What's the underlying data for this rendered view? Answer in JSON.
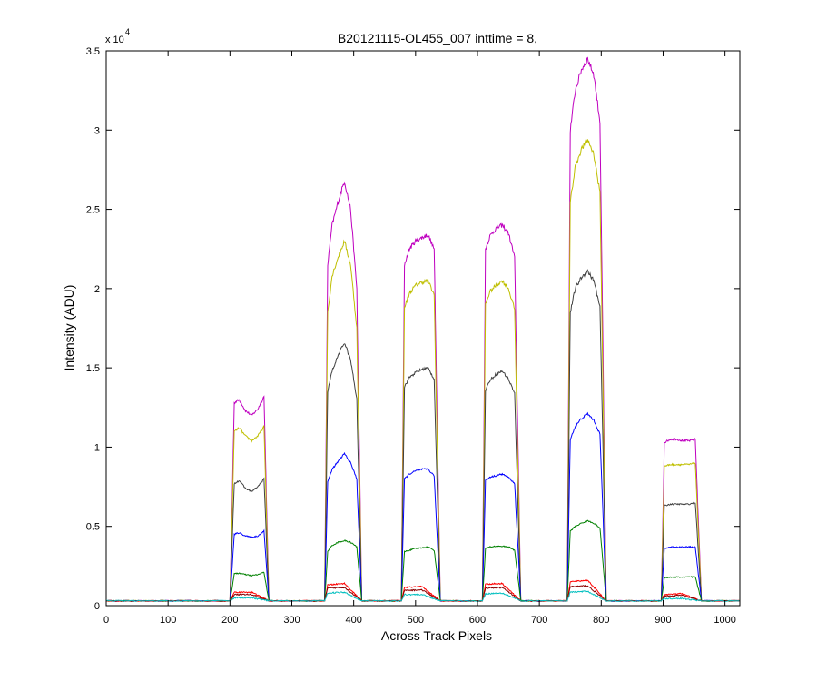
{
  "chart_data": {
    "type": "line",
    "title": "B20121115-OL455_007 inttime = 8,",
    "xlabel": "Across Track Pixels",
    "ylabel": "Intensity (ADU)",
    "y_exponent_base": "x 10",
    "y_exponent_power": "4",
    "xlim": [
      0,
      1024
    ],
    "ylim": [
      0,
      35000
    ],
    "x_ticks": [
      0,
      100,
      200,
      300,
      400,
      500,
      600,
      700,
      800,
      900,
      1000
    ],
    "x_tick_labels": [
      "0",
      "100",
      "200",
      "300",
      "400",
      "500",
      "600",
      "700",
      "800",
      "900",
      "1000"
    ],
    "y_ticks": [
      0,
      5000,
      10000,
      15000,
      20000,
      25000,
      30000,
      35000
    ],
    "y_tick_labels": [
      "0",
      "0.5",
      "1",
      "1.5",
      "2",
      "2.5",
      "3",
      "3.5"
    ],
    "grid": false,
    "baseline": 300,
    "series_colors": [
      "#bf00bf",
      "#bfbf00",
      "#404040",
      "#0000ff",
      "#008000",
      "#ff0000",
      "#8b0000",
      "#00bfbf"
    ],
    "plateaus": [
      {
        "x_start": 200,
        "x_end": 263,
        "levels": [
          {
            "x": [
              200,
              207,
              215,
              225,
              235,
              245,
              255,
              263
            ],
            "y": [
              300,
              12800,
              13000,
              12300,
              12000,
              12400,
              13200,
              300
            ]
          },
          {
            "x": [
              200,
              207,
              215,
              225,
              235,
              245,
              255,
              263
            ],
            "y": [
              300,
              11000,
              11200,
              10700,
              10400,
              10700,
              11300,
              300
            ]
          },
          {
            "x": [
              200,
              207,
              215,
              225,
              235,
              245,
              255,
              263
            ],
            "y": [
              300,
              7700,
              7900,
              7400,
              7200,
              7500,
              8000,
              300
            ]
          },
          {
            "x": [
              200,
              207,
              215,
              225,
              235,
              245,
              255,
              263
            ],
            "y": [
              300,
              4500,
              4600,
              4400,
              4300,
              4400,
              4700,
              300
            ]
          },
          {
            "x": [
              200,
              207,
              215,
              225,
              235,
              245,
              255,
              263
            ],
            "y": [
              300,
              2000,
              2050,
              1950,
              1900,
              1950,
              2100,
              300
            ]
          },
          {
            "x": [
              200,
              207,
              235,
              263
            ],
            "y": [
              300,
              850,
              850,
              300
            ]
          },
          {
            "x": [
              200,
              207,
              235,
              263
            ],
            "y": [
              300,
              700,
              700,
              300
            ]
          },
          {
            "x": [
              200,
              207,
              235,
              263
            ],
            "y": [
              300,
              500,
              500,
              300
            ]
          }
        ]
      },
      {
        "x_start": 353,
        "x_end": 413,
        "levels": [
          {
            "x": [
              353,
              358,
              365,
              375,
              385,
              395,
              405,
              413
            ],
            "y": [
              300,
              21500,
              24000,
              25500,
              26800,
              25000,
              20000,
              300
            ]
          },
          {
            "x": [
              353,
              358,
              365,
              375,
              385,
              395,
              405,
              413
            ],
            "y": [
              300,
              18500,
              20800,
              22000,
              23000,
              21500,
              17500,
              300
            ]
          },
          {
            "x": [
              353,
              358,
              365,
              375,
              385,
              395,
              405,
              413
            ],
            "y": [
              300,
              13500,
              14800,
              15800,
              16600,
              15500,
              13000,
              300
            ]
          },
          {
            "x": [
              353,
              358,
              365,
              375,
              385,
              395,
              405,
              413
            ],
            "y": [
              300,
              7800,
              8600,
              9100,
              9600,
              9000,
              8000,
              300
            ]
          },
          {
            "x": [
              353,
              358,
              365,
              375,
              385,
              395,
              405,
              413
            ],
            "y": [
              300,
              3400,
              3800,
              4000,
              4100,
              4000,
              3700,
              300
            ]
          },
          {
            "x": [
              353,
              358,
              385,
              413
            ],
            "y": [
              300,
              1300,
              1400,
              300
            ]
          },
          {
            "x": [
              353,
              358,
              385,
              413
            ],
            "y": [
              300,
              1100,
              1150,
              300
            ]
          },
          {
            "x": [
              353,
              358,
              385,
              413
            ],
            "y": [
              300,
              800,
              850,
              300
            ]
          }
        ]
      },
      {
        "x_start": 477,
        "x_end": 540,
        "levels": [
          {
            "x": [
              477,
              482,
              490,
              500,
              510,
              520,
              530,
              540
            ],
            "y": [
              300,
              21500,
              22500,
              23000,
              23200,
              23400,
              22500,
              300
            ]
          },
          {
            "x": [
              477,
              482,
              490,
              500,
              510,
              520,
              530,
              540
            ],
            "y": [
              300,
              18800,
              19700,
              20200,
              20400,
              20500,
              19600,
              300
            ]
          },
          {
            "x": [
              477,
              482,
              490,
              500,
              510,
              520,
              530,
              540
            ],
            "y": [
              300,
              13800,
              14400,
              14700,
              14900,
              15000,
              14300,
              300
            ]
          },
          {
            "x": [
              477,
              482,
              490,
              500,
              510,
              520,
              530,
              540
            ],
            "y": [
              300,
              8000,
              8300,
              8500,
              8600,
              8600,
              8200,
              300
            ]
          },
          {
            "x": [
              477,
              482,
              490,
              500,
              510,
              520,
              530,
              540
            ],
            "y": [
              300,
              3400,
              3500,
              3600,
              3650,
              3700,
              3500,
              300
            ]
          },
          {
            "x": [
              477,
              482,
              510,
              540
            ],
            "y": [
              300,
              1150,
              1200,
              300
            ]
          },
          {
            "x": [
              477,
              482,
              510,
              540
            ],
            "y": [
              300,
              950,
              1000,
              300
            ]
          },
          {
            "x": [
              477,
              482,
              510,
              540
            ],
            "y": [
              300,
              700,
              700,
              300
            ]
          }
        ]
      },
      {
        "x_start": 608,
        "x_end": 670,
        "levels": [
          {
            "x": [
              608,
              613,
              620,
              630,
              640,
              650,
              660,
              670
            ],
            "y": [
              300,
              22500,
              23300,
              23800,
              24000,
              23500,
              22000,
              300
            ]
          },
          {
            "x": [
              608,
              613,
              620,
              630,
              640,
              650,
              660,
              670
            ],
            "y": [
              300,
              19000,
              19800,
              20200,
              20500,
              20000,
              18700,
              300
            ]
          },
          {
            "x": [
              608,
              613,
              620,
              630,
              640,
              650,
              660,
              670
            ],
            "y": [
              300,
              13600,
              14200,
              14600,
              14800,
              14300,
              13400,
              300
            ]
          },
          {
            "x": [
              608,
              613,
              620,
              630,
              640,
              650,
              660,
              670
            ],
            "y": [
              300,
              7900,
              8100,
              8200,
              8300,
              8100,
              7700,
              300
            ]
          },
          {
            "x": [
              608,
              613,
              620,
              630,
              640,
              650,
              660,
              670
            ],
            "y": [
              300,
              3600,
              3700,
              3750,
              3750,
              3700,
              3500,
              300
            ]
          },
          {
            "x": [
              608,
              613,
              640,
              670
            ],
            "y": [
              300,
              1350,
              1400,
              300
            ]
          },
          {
            "x": [
              608,
              613,
              640,
              670
            ],
            "y": [
              300,
              1100,
              1150,
              300
            ]
          },
          {
            "x": [
              608,
              613,
              640,
              670
            ],
            "y": [
              300,
              750,
              800,
              300
            ]
          }
        ]
      },
      {
        "x_start": 745,
        "x_end": 808,
        "levels": [
          {
            "x": [
              745,
              750,
              758,
              768,
              778,
              788,
              798,
              808
            ],
            "y": [
              300,
              30000,
              32500,
              33800,
              34500,
              33500,
              30500,
              300
            ]
          },
          {
            "x": [
              745,
              750,
              758,
              768,
              778,
              788,
              798,
              808
            ],
            "y": [
              300,
              25500,
              27700,
              28800,
              29400,
              28500,
              26000,
              300
            ]
          },
          {
            "x": [
              745,
              750,
              758,
              768,
              778,
              788,
              798,
              808
            ],
            "y": [
              300,
              18500,
              20000,
              20700,
              21100,
              20500,
              18800,
              300
            ]
          },
          {
            "x": [
              745,
              750,
              758,
              768,
              778,
              788,
              798,
              808
            ],
            "y": [
              300,
              10500,
              11300,
              11800,
              12100,
              11700,
              10800,
              300
            ]
          },
          {
            "x": [
              745,
              750,
              758,
              768,
              778,
              788,
              798,
              808
            ],
            "y": [
              300,
              4700,
              5000,
              5200,
              5350,
              5200,
              4900,
              300
            ]
          },
          {
            "x": [
              745,
              750,
              778,
              808
            ],
            "y": [
              300,
              1500,
              1600,
              300
            ]
          },
          {
            "x": [
              745,
              750,
              778,
              808
            ],
            "y": [
              300,
              1200,
              1250,
              300
            ]
          },
          {
            "x": [
              745,
              750,
              778,
              808
            ],
            "y": [
              300,
              850,
              900,
              300
            ]
          }
        ]
      },
      {
        "x_start": 897,
        "x_end": 962,
        "levels": [
          {
            "x": [
              897,
              902,
              912,
              922,
              932,
              942,
              952,
              962
            ],
            "y": [
              300,
              10300,
              10500,
              10500,
              10400,
              10400,
              10500,
              300
            ]
          },
          {
            "x": [
              897,
              902,
              912,
              922,
              932,
              942,
              952,
              962
            ],
            "y": [
              300,
              8800,
              8900,
              8900,
              8900,
              8900,
              9000,
              300
            ]
          },
          {
            "x": [
              897,
              902,
              912,
              922,
              932,
              942,
              952,
              962
            ],
            "y": [
              300,
              6300,
              6400,
              6400,
              6400,
              6400,
              6500,
              300
            ]
          },
          {
            "x": [
              897,
              902,
              912,
              922,
              932,
              942,
              952,
              962
            ],
            "y": [
              300,
              3600,
              3700,
              3700,
              3700,
              3700,
              3700,
              300
            ]
          },
          {
            "x": [
              897,
              902,
              912,
              922,
              932,
              942,
              952,
              962
            ],
            "y": [
              300,
              1750,
              1800,
              1800,
              1800,
              1800,
              1800,
              300
            ]
          },
          {
            "x": [
              897,
              902,
              930,
              962
            ],
            "y": [
              300,
              700,
              750,
              300
            ]
          },
          {
            "x": [
              897,
              902,
              930,
              962
            ],
            "y": [
              300,
              600,
              650,
              300
            ]
          },
          {
            "x": [
              897,
              902,
              930,
              962
            ],
            "y": [
              300,
              450,
              450,
              300
            ]
          }
        ]
      }
    ]
  }
}
